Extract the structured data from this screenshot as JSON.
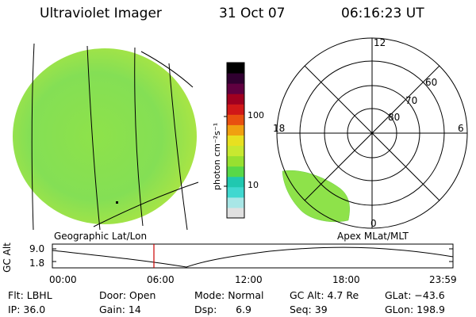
{
  "header": {
    "instrument": "Ultraviolet Imager",
    "date": "31 Oct 07",
    "time": "06:16:23 UT"
  },
  "colorbar": {
    "unit_label": "photon cm⁻²s⁻¹",
    "tick_100": "100",
    "tick_10": "10",
    "colors": [
      "#e0e0e0",
      "#a8e6e6",
      "#40d8d0",
      "#20c8b0",
      "#58d848",
      "#98e030",
      "#c8e830",
      "#e8e020",
      "#f0a010",
      "#e85010",
      "#d01818",
      "#a00020",
      "#600040",
      "#300030",
      "#000000"
    ]
  },
  "left_panel": {
    "caption": "Geographic Lat/Lon",
    "disk_color": "#8fe54a",
    "edge_color": "#b6e83a"
  },
  "right_panel": {
    "caption": "Apex  MLat/MLT",
    "mlt_12": "12",
    "mlt_18": "18",
    "mlt_6": "6",
    "mlt_0": "0",
    "lat_60": "60",
    "lat_70": "70",
    "lat_80": "80",
    "blob_color": "#8fe54a"
  },
  "altitude_plot": {
    "ylabel": "GC Alt",
    "y_top": "9.0",
    "y_bottom": "1.8",
    "x_ticks": [
      "00:00",
      "06:00",
      "12:00",
      "18:00",
      "23:59"
    ],
    "current_time_marker_color": "#cc0000"
  },
  "status": {
    "flt": "Flt: LBHL",
    "ip": "IP: 36.0",
    "door": "Door: Open",
    "gain": "Gain: 14",
    "mode": "Mode: Normal",
    "dsp": "Dsp:      6.9",
    "gc_alt": "GC Alt: 4.7 Re",
    "seq": "Seq: 39",
    "glat": "GLat: −43.6",
    "glon": "GLon: 198.9"
  }
}
